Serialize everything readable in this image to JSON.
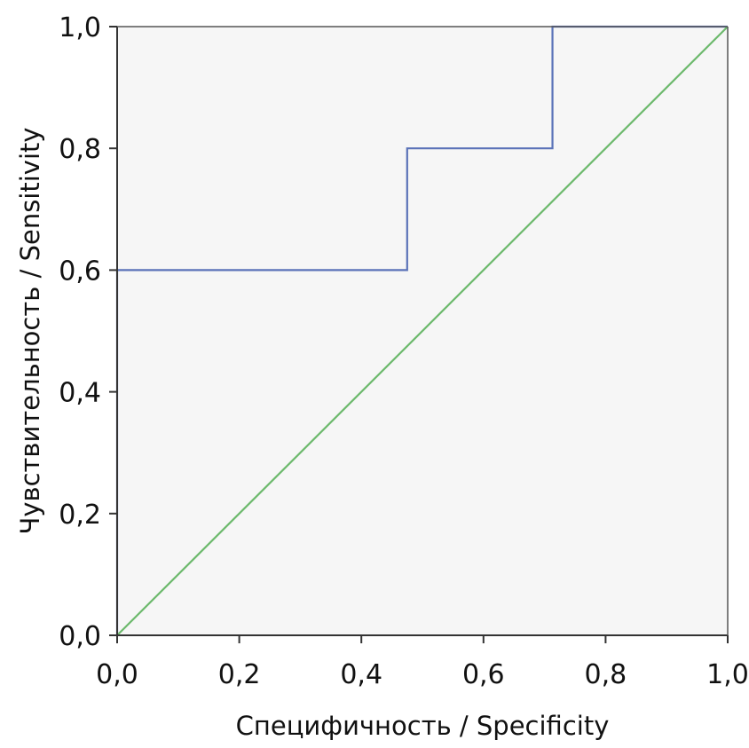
{
  "chart_data": {
    "type": "line",
    "title": "",
    "xlabel": "Специфичность / Specificity",
    "ylabel": "Чувствительность / Sensitivity",
    "xlim": [
      0.0,
      1.0
    ],
    "ylim": [
      0.0,
      1.0
    ],
    "xticks": [
      "0,0",
      "0,2",
      "0,4",
      "0,6",
      "0,8",
      "1,0"
    ],
    "yticks": [
      "0,0",
      "0,2",
      "0,4",
      "0,6",
      "0,8",
      "1,0"
    ],
    "xtick_values": [
      0.0,
      0.2,
      0.4,
      0.6,
      0.8,
      1.0
    ],
    "ytick_values": [
      0.0,
      0.2,
      0.4,
      0.6,
      0.8,
      1.0
    ],
    "grid": false,
    "background_color": "#f6f6f6",
    "series": [
      {
        "color": "#5a72b8",
        "x": [
          0.0,
          0.0,
          0.475,
          0.475,
          0.713,
          0.713,
          1.0
        ],
        "y": [
          0.0,
          0.6,
          0.6,
          0.8,
          0.8,
          1.0,
          1.0
        ]
      },
      {
        "color": "#6cb96c",
        "x": [
          0.0,
          1.0
        ],
        "y": [
          0.0,
          1.0
        ]
      }
    ]
  }
}
